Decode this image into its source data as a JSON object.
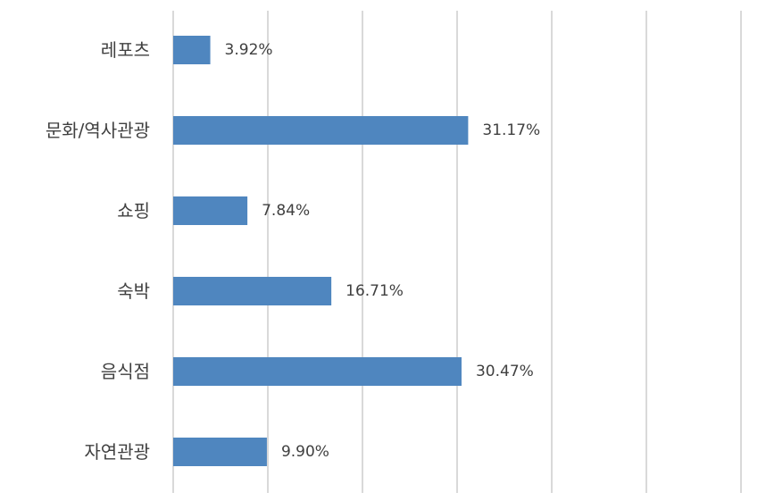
{
  "chart_data": {
    "type": "bar",
    "orientation": "horizontal",
    "categories": [
      "레포츠",
      "문화/역사관광",
      "쇼핑",
      "숙박",
      "음식점",
      "자연관광"
    ],
    "values": [
      3.92,
      31.17,
      7.84,
      16.71,
      30.47,
      9.9
    ],
    "data_labels": [
      "3.92%",
      "31.17%",
      "7.84%",
      "16.71%",
      "30.47%",
      "9.90%"
    ],
    "xlim": [
      0,
      60
    ],
    "grid": true,
    "bar_color": "#4F86BF",
    "gridline_color": "#D9D9D9",
    "text_color": "#404040"
  }
}
